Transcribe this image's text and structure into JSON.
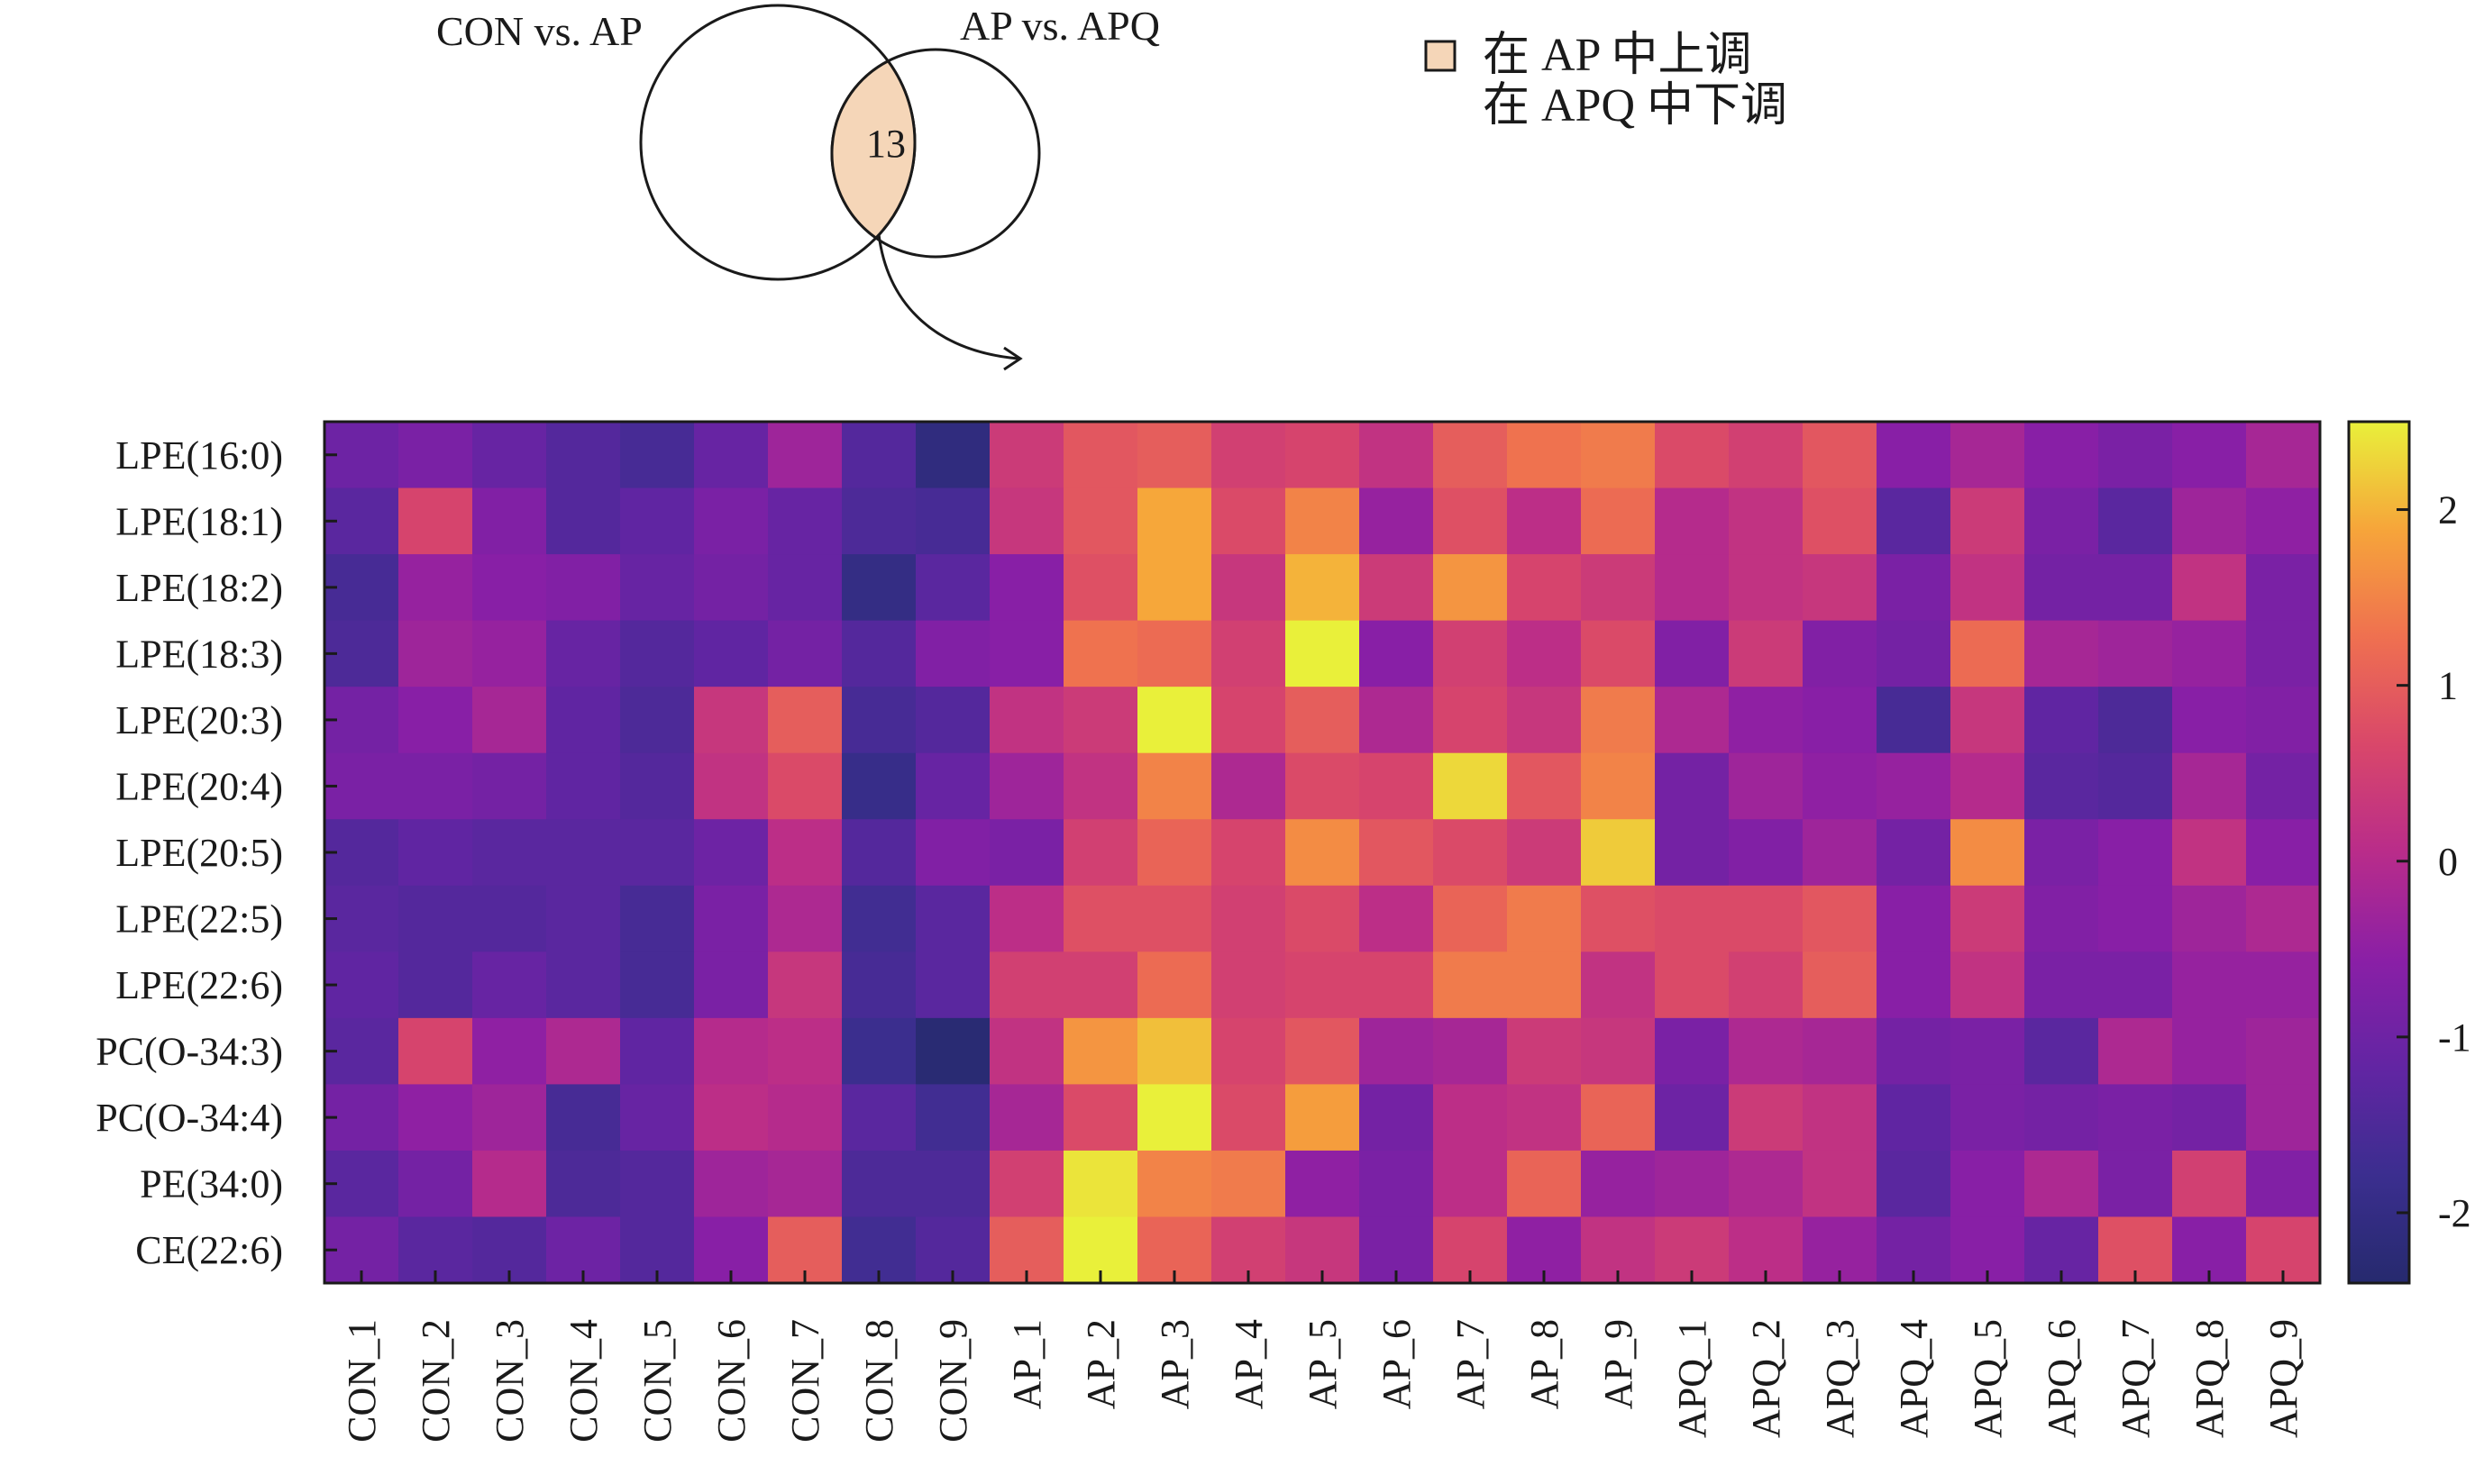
{
  "venn": {
    "left_label": "CON vs. AP",
    "right_label": "AP vs. APQ",
    "intersection_count": "13",
    "intersection_color": "#f5d6b8"
  },
  "legend": {
    "line1": "在 AP 中上调",
    "line2": "在 APQ 中下调"
  },
  "chart_data": {
    "type": "heatmap",
    "colormap": "plasma",
    "rows": [
      "LPE(16:0)",
      "LPE(18:1)",
      "LPE(18:2)",
      "LPE(18:3)",
      "LPE(20:3)",
      "LPE(20:4)",
      "LPE(20:5)",
      "LPE(22:5)",
      "LPE(22:6)",
      "PC(O-34:3)",
      "PC(O-34:4)",
      "PE(34:0)",
      "CE(22:6)"
    ],
    "columns": [
      "CON_1",
      "CON_2",
      "CON_3",
      "CON_4",
      "CON_5",
      "CON_6",
      "CON_7",
      "CON_8",
      "CON_9",
      "AP_1",
      "AP_2",
      "AP_3",
      "AP_4",
      "AP_5",
      "AP_6",
      "AP_7",
      "AP_8",
      "AP_9",
      "APQ_1",
      "APQ_2",
      "APQ_3",
      "APQ_4",
      "APQ_5",
      "APQ_6",
      "APQ_7",
      "APQ_8",
      "APQ_9"
    ],
    "values": [
      [
        -1.0,
        -0.8,
        -1.1,
        -1.4,
        -1.6,
        -1.1,
        -0.3,
        -1.4,
        -2.1,
        0.4,
        0.9,
        1.0,
        0.5,
        0.6,
        0.2,
        1.0,
        1.3,
        1.4,
        0.7,
        0.5,
        0.9,
        -0.6,
        -0.2,
        -0.6,
        -0.8,
        -0.6,
        -0.2
      ],
      [
        -1.3,
        0.6,
        -0.7,
        -1.4,
        -1.2,
        -0.8,
        -1.1,
        -1.5,
        -1.6,
        0.3,
        0.9,
        1.9,
        0.7,
        1.5,
        -0.4,
        0.8,
        0.1,
        1.2,
        0.0,
        0.2,
        0.8,
        -1.3,
        0.4,
        -0.8,
        -1.3,
        -0.3,
        -0.5
      ],
      [
        -1.6,
        -0.4,
        -0.6,
        -0.7,
        -1.1,
        -0.9,
        -1.1,
        -2.0,
        -1.3,
        -0.6,
        0.8,
        1.9,
        0.3,
        2.0,
        0.4,
        1.7,
        0.6,
        0.4,
        0.0,
        0.2,
        0.3,
        -0.8,
        0.2,
        -0.9,
        -0.9,
        0.2,
        -0.8
      ],
      [
        -1.5,
        -0.3,
        -0.4,
        -1.1,
        -1.4,
        -1.2,
        -0.9,
        -1.4,
        -0.7,
        -0.6,
        1.3,
        1.2,
        0.5,
        2.5,
        -0.6,
        0.5,
        0.1,
        0.7,
        -0.7,
        0.4,
        -0.7,
        -0.9,
        1.2,
        -0.2,
        -0.3,
        -0.4,
        -0.8
      ],
      [
        -0.9,
        -0.6,
        -0.2,
        -1.2,
        -1.5,
        0.3,
        1.0,
        -1.6,
        -1.4,
        0.2,
        0.4,
        2.5,
        0.6,
        1.0,
        -0.1,
        0.6,
        0.3,
        1.4,
        -0.1,
        -0.5,
        -0.6,
        -1.6,
        0.3,
        -1.2,
        -1.5,
        -0.6,
        -0.7
      ],
      [
        -0.8,
        -0.8,
        -0.9,
        -1.2,
        -1.4,
        0.2,
        0.7,
        -1.9,
        -1.1,
        -0.3,
        0.2,
        1.5,
        -0.1,
        0.7,
        0.6,
        2.3,
        0.9,
        1.5,
        -0.9,
        -0.3,
        -0.5,
        -0.4,
        0.0,
        -1.3,
        -1.4,
        -0.2,
        -0.9
      ],
      [
        -1.4,
        -1.2,
        -1.3,
        -1.3,
        -1.3,
        -1.0,
        0.1,
        -1.4,
        -0.7,
        -0.8,
        0.5,
        1.1,
        0.6,
        1.6,
        0.9,
        0.7,
        0.4,
        2.2,
        -0.9,
        -0.7,
        -0.3,
        -0.9,
        1.6,
        -0.8,
        -0.6,
        0.2,
        -0.6
      ],
      [
        -1.3,
        -1.4,
        -1.4,
        -1.3,
        -1.6,
        -0.8,
        -0.1,
        -1.7,
        -1.3,
        0.1,
        0.8,
        0.8,
        0.5,
        0.7,
        0.1,
        1.1,
        1.4,
        0.8,
        0.7,
        0.7,
        0.9,
        -0.6,
        0.4,
        -0.7,
        -0.6,
        -0.3,
        -0.1
      ],
      [
        -1.2,
        -1.4,
        -1.1,
        -1.3,
        -1.6,
        -0.8,
        0.3,
        -1.6,
        -1.3,
        0.5,
        0.5,
        1.2,
        0.5,
        0.6,
        0.6,
        1.4,
        1.4,
        0.2,
        0.7,
        0.5,
        1.0,
        -0.6,
        0.2,
        -0.8,
        -0.8,
        -0.4,
        -0.4
      ],
      [
        -1.3,
        0.6,
        -0.5,
        -0.1,
        -1.2,
        0.0,
        0.1,
        -1.8,
        -2.3,
        0.2,
        1.7,
        2.1,
        0.6,
        0.9,
        -0.3,
        -0.2,
        0.4,
        0.3,
        -0.8,
        -0.1,
        -0.2,
        -0.9,
        -0.8,
        -1.3,
        -0.1,
        -0.4,
        -0.3
      ],
      [
        -0.9,
        -0.5,
        -0.3,
        -1.6,
        -1.1,
        0.1,
        0.0,
        -1.3,
        -1.7,
        -0.2,
        0.7,
        2.5,
        0.7,
        1.8,
        -0.9,
        0.1,
        0.2,
        1.1,
        -1.0,
        0.4,
        0.2,
        -1.2,
        -0.8,
        -0.9,
        -0.8,
        -0.9,
        -0.3
      ],
      [
        -1.3,
        -0.9,
        0.0,
        -1.5,
        -1.4,
        -0.3,
        -0.2,
        -1.5,
        -1.5,
        0.5,
        2.4,
        1.5,
        1.4,
        -0.5,
        -0.8,
        0.1,
        1.1,
        -0.4,
        -0.3,
        -0.1,
        0.2,
        -1.3,
        -0.6,
        -0.1,
        -0.8,
        0.5,
        -0.7
      ],
      [
        -0.9,
        -1.3,
        -1.4,
        -1.0,
        -1.4,
        -0.6,
        1.0,
        -1.7,
        -1.4,
        1.0,
        2.5,
        1.1,
        0.5,
        0.3,
        -0.8,
        0.6,
        -0.5,
        0.2,
        0.4,
        0.1,
        -0.4,
        -0.9,
        -0.6,
        -1.1,
        0.8,
        -0.6,
        0.6
      ]
    ],
    "colorbar": {
      "range": [
        -2.4,
        2.5
      ],
      "ticks": [
        -2,
        -1,
        0,
        1,
        2
      ],
      "tick_labels": [
        "-2",
        "-1",
        "0",
        "1",
        "2"
      ]
    }
  }
}
